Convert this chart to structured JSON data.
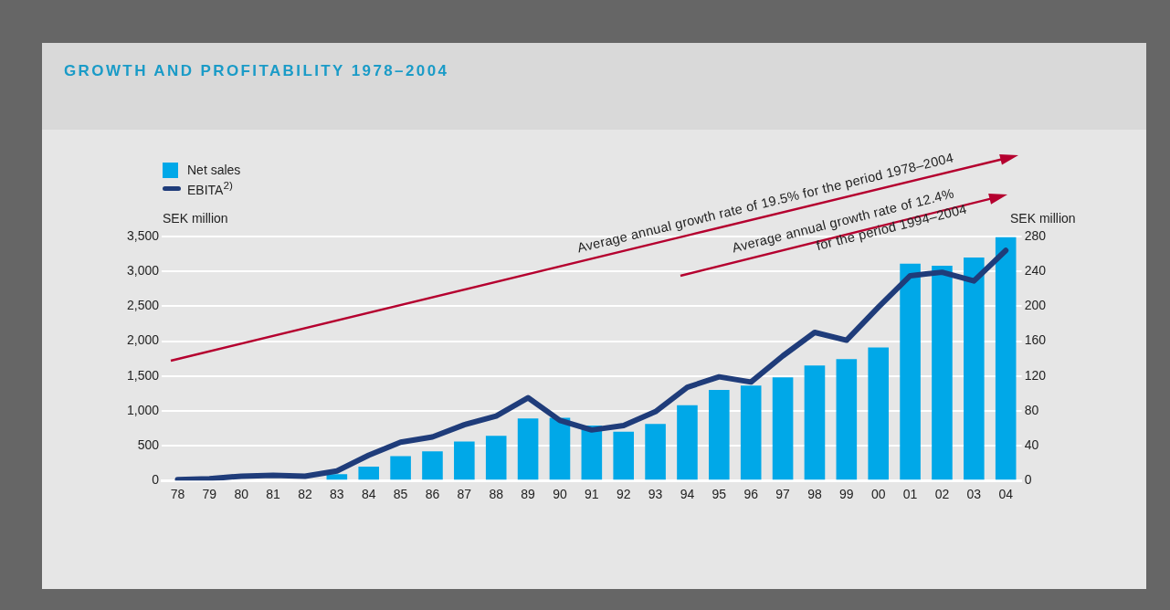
{
  "chart_data": {
    "type": "bar",
    "title": "GROWTH AND PROFITABILITY 1978–2004",
    "ylabel": "SEK million",
    "y2label": "SEK million",
    "categories": [
      "78",
      "79",
      "80",
      "81",
      "82",
      "83",
      "84",
      "85",
      "86",
      "87",
      "88",
      "89",
      "90",
      "91",
      "92",
      "93",
      "94",
      "95",
      "96",
      "97",
      "98",
      "99",
      "00",
      "01",
      "02",
      "03",
      "04"
    ],
    "series": [
      {
        "name": "Net sales",
        "color": "#00a8e8",
        "values": [
          null,
          10,
          null,
          null,
          null,
          90,
          200,
          350,
          420,
          560,
          640,
          890,
          900,
          790,
          700,
          810,
          1080,
          1300,
          1360,
          1480,
          1650,
          1740,
          1910,
          3110,
          3080,
          3200,
          3490
        ]
      },
      {
        "name": "EBITA$^{2)}$",
        "type": "line",
        "axis": "y2",
        "color": "#1f3c7a",
        "values": [
          1,
          2,
          5,
          6,
          5,
          11,
          29,
          44,
          50,
          64,
          74,
          95,
          69,
          58,
          63,
          79,
          107,
          119,
          113,
          143,
          170,
          161,
          199,
          235,
          239,
          229,
          264
        ]
      }
    ],
    "ylim": [
      0,
      3500
    ],
    "yticks": [
      0,
      500,
      {
        "value": 1000,
        "label": "1,000"
      },
      {
        "value": 1500,
        "label": "1,500"
      },
      {
        "value": 2000,
        "label": "2,000"
      },
      {
        "value": 2500,
        "label": "2,500"
      },
      {
        "value": 3000,
        "label": "3,000"
      },
      {
        "value": 3500,
        "label": "3,500"
      }
    ],
    "y2lim": [
      0,
      280
    ],
    "y2ticks": [
      0,
      40,
      80,
      120,
      160,
      200,
      240,
      280
    ],
    "grid": "y",
    "legend": "top left",
    "annotations": [
      "Average annual growth rate of 19.5% for the period 1978–2004",
      "Average annual growth rate of 12.4%\nfor the period 1994–2004"
    ]
  }
}
